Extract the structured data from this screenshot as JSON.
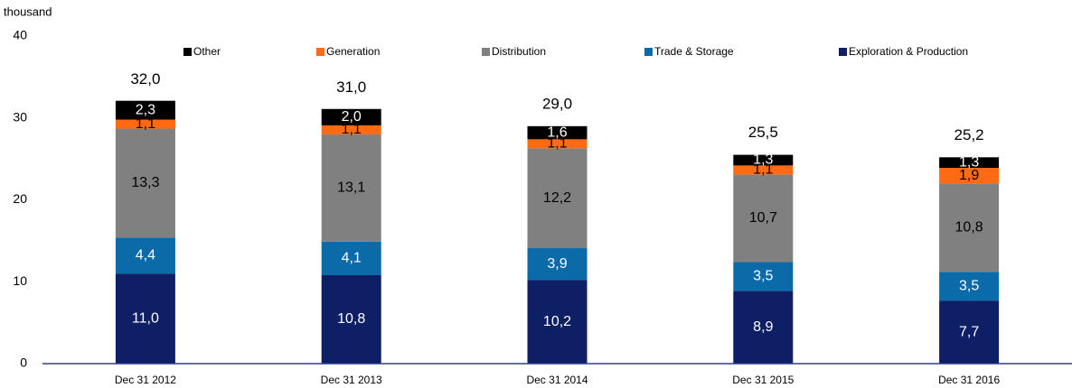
{
  "chart_data": {
    "type": "stacked_bar",
    "y_unit": "thousand",
    "categories": [
      "Dec 31 2012",
      "Dec 31 2013",
      "Dec 31 2014",
      "Dec 31 2015",
      "Dec 31 2016"
    ],
    "series": [
      {
        "name": "Exploration & Production",
        "color": "#0f1f66",
        "values": [
          11.0,
          10.8,
          10.2,
          8.9,
          7.7
        ],
        "value_labels": [
          "11,0",
          "10,8",
          "10,2",
          "8,9",
          "7,7"
        ]
      },
      {
        "name": "Trade & Storage",
        "color": "#0b6aa8",
        "values": [
          4.4,
          4.1,
          3.9,
          3.5,
          3.5
        ],
        "value_labels": [
          "4,4",
          "4,1",
          "3,9",
          "3,5",
          "3,5"
        ]
      },
      {
        "name": "Distribution",
        "color": "#808080",
        "values": [
          13.3,
          13.1,
          12.2,
          10.7,
          10.8
        ],
        "value_labels": [
          "13,3",
          "13,1",
          "12,2",
          "10,7",
          "10,8"
        ]
      },
      {
        "name": "Generation",
        "color": "#ff6a13",
        "values": [
          1.1,
          1.1,
          1.1,
          1.1,
          1.9
        ],
        "value_labels": [
          "1,1",
          "1,1",
          "1,1",
          "1,1",
          "1,9"
        ]
      },
      {
        "name": "Other",
        "color": "#000000",
        "values": [
          2.3,
          2.0,
          1.6,
          1.3,
          1.3
        ],
        "value_labels": [
          "2,3",
          "2,0",
          "1,6",
          "1,3",
          "1,3"
        ]
      }
    ],
    "totals": [
      32.0,
      31.0,
      29.0,
      25.5,
      25.2
    ],
    "total_labels": [
      "32,0",
      "31,0",
      "29,0",
      "25,5",
      "25,2"
    ],
    "ylim": [
      0,
      40
    ],
    "yticks": [
      0,
      10,
      20,
      30,
      40
    ],
    "grid": false,
    "legend": "top"
  }
}
